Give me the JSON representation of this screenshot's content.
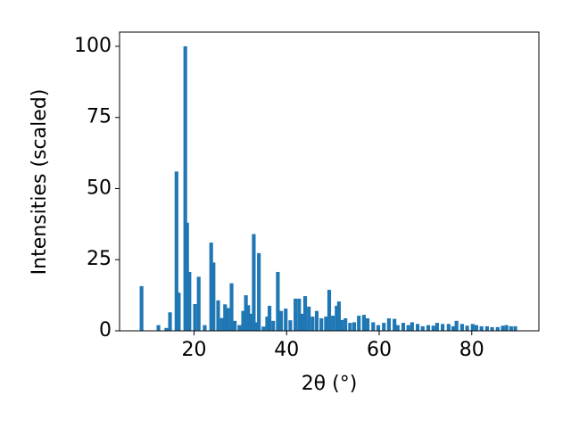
{
  "chart_data": {
    "type": "bar",
    "xlabel": "2θ (°)",
    "ylabel": "Intensities (scaled)",
    "x": [
      8.65,
      12.3,
      14,
      14.8,
      16.2,
      16.7,
      18.1,
      18.5,
      19.0,
      20.2,
      21,
      22.3,
      23.7,
      24.2,
      25.2,
      26,
      26.7,
      27.3,
      28.1,
      28.8,
      29.8,
      30.6,
      31.2,
      31.7,
      32.3,
      32.9,
      33.5,
      34,
      35,
      35.8,
      36.3,
      37.1,
      38.1,
      38.8,
      39.8,
      40.8,
      41.9,
      42.7,
      43.3,
      44,
      44.8,
      45.6,
      46.5,
      47.5,
      48.5,
      49.2,
      50,
      50.8,
      51.3,
      51.9,
      52.7,
      53.7,
      54.6,
      55.6,
      56.7,
      57.5,
      58.7,
      59.8,
      61,
      62.1,
      63.3,
      64,
      65.2,
      66.3,
      67.1,
      68.3,
      69.4,
      70.6,
      71.7,
      72.5,
      73.7,
      75,
      76,
      76.7,
      77.9,
      79,
      80.2,
      81,
      82.1,
      83.3,
      84.4,
      85.6,
      86.7,
      87.5,
      88.5,
      89.4
    ],
    "values": [
      15.7,
      2,
      1,
      6.5,
      56,
      13.4,
      100,
      38,
      20.7,
      9.4,
      19,
      2,
      31,
      24,
      10.7,
      4.5,
      9.3,
      8,
      16.7,
      3.5,
      2,
      7,
      12.5,
      9,
      6,
      34,
      3,
      27.3,
      1.5,
      5,
      8.8,
      3.5,
      20.7,
      7,
      7.8,
      3.7,
      11.3,
      11.3,
      6,
      12.2,
      8.5,
      5,
      7,
      4.4,
      5,
      14.4,
      5.3,
      8.8,
      10.3,
      3.8,
      4.4,
      2.8,
      3,
      5.3,
      5.6,
      4.4,
      3,
      2,
      2.8,
      4.4,
      4.2,
      2,
      2.8,
      2,
      3,
      2.4,
      1.6,
      2,
      1.8,
      2.8,
      2.4,
      2.4,
      1.6,
      3.5,
      2.4,
      1.8,
      2.4,
      2,
      1.6,
      1.6,
      1.3,
      1.3,
      1.8,
      2,
      1.6,
      1.6
    ],
    "color": "#1f77b4",
    "xlim": [
      3.9,
      94.5
    ],
    "xticks": [
      20,
      40,
      60,
      80
    ],
    "ylim": [
      0,
      105
    ],
    "yticks": [
      0,
      25,
      50,
      75,
      100
    ]
  }
}
